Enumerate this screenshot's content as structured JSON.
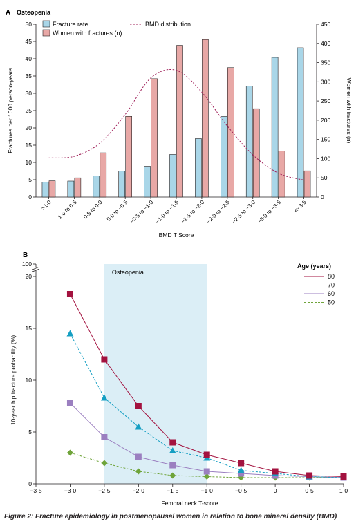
{
  "caption": {
    "label": "Figure 2:",
    "text": "Fracture epidemiology in postmenopausal women in relation to bone mineral density (BMD)"
  },
  "chart_data": [
    {
      "type": "bar",
      "panel": "A",
      "title": "Osteopenia",
      "xlabel": "BMD T Score",
      "ylabel": "Fractures per 1000 person-years",
      "y2label": "Women with fractures (n)",
      "ylim": [
        0,
        50
      ],
      "y2lim": [
        0,
        450
      ],
      "yticks": [
        0,
        5,
        10,
        15,
        20,
        25,
        30,
        35,
        40,
        45,
        50
      ],
      "y2ticks": [
        0,
        50,
        100,
        150,
        200,
        250,
        300,
        350,
        400,
        450
      ],
      "categories": [
        ">1·0",
        "1·0 to 0·5",
        "0·5 to 0·0",
        "0·0 to −0·5",
        "−0·5 to −1·0",
        "−1·0 to −1·5",
        "−1·5 to −2·0",
        "−2·0 to −2·5",
        "−2·5 to −3·0",
        "−3·0 to −3·5",
        "<−3·5"
      ],
      "legend_position": "top-left",
      "series": [
        {
          "name": "Fracture rate",
          "axis": "left",
          "color": "#a9d6e8",
          "values": [
            4.3,
            4.6,
            6.1,
            7.5,
            8.9,
            12.3,
            16.9,
            23.3,
            32.1,
            40.4,
            43.2
          ]
        },
        {
          "name": "Women with fractures (n)",
          "axis": "right",
          "color": "#e8a8a6",
          "values": [
            42,
            50,
            115,
            210,
            308,
            395,
            410,
            337,
            230,
            120,
            68
          ]
        },
        {
          "name": "BMD distribution",
          "type": "line",
          "style": "dashed",
          "color": "#a0215a",
          "axis": "right",
          "values": [
            102,
            106,
            140,
            215,
            310,
            330,
            273,
            185,
            110,
            62,
            44
          ]
        }
      ]
    },
    {
      "type": "line",
      "panel": "B",
      "xlabel": "Femoral neck T-score",
      "ylabel": "10-year hip fracture probability (%)",
      "xlim": [
        -3.5,
        1.0
      ],
      "ylim": [
        0,
        20
      ],
      "xticks": [
        "−3·5",
        "−3·0",
        "−2·5",
        "−2·0",
        "−1·5",
        "−1·0",
        "−0·5",
        "0",
        "0·5",
        "1·0"
      ],
      "xtick_values": [
        -3.5,
        -3.0,
        -2.5,
        -2.0,
        -1.5,
        -1.0,
        -0.5,
        0,
        0.5,
        1.0
      ],
      "yticks": [
        0,
        5,
        10,
        15,
        20
      ],
      "ybreak_label": "100",
      "shaded_region": {
        "label": "Osteopenia",
        "x": [
          -2.5,
          -1.0
        ],
        "color": "#dbeef6"
      },
      "legend_title": "Age (years)",
      "legend_position": "top-right",
      "x": [
        -3.0,
        -2.5,
        -2.0,
        -1.5,
        -1.0,
        -0.5,
        0,
        0.5,
        1.0
      ],
      "series": [
        {
          "name": "80",
          "color": "#a3123f",
          "style": "solid",
          "marker": "square",
          "values": [
            18.3,
            12.0,
            7.5,
            4.0,
            2.8,
            2.0,
            1.2,
            0.8,
            0.7
          ]
        },
        {
          "name": "70",
          "color": "#159fc3",
          "style": "dashed",
          "marker": "triangle",
          "values": [
            14.5,
            8.3,
            5.5,
            3.2,
            2.5,
            1.3,
            1.0,
            0.7,
            0.6
          ]
        },
        {
          "name": "60",
          "color": "#9b7fc0",
          "style": "solid",
          "marker": "square",
          "values": [
            7.8,
            4.5,
            2.6,
            1.8,
            1.2,
            1.0,
            0.8,
            0.7,
            0.6
          ]
        },
        {
          "name": "50",
          "color": "#6fa43a",
          "style": "dashed",
          "marker": "diamond",
          "values": [
            3.0,
            2.0,
            1.2,
            0.8,
            0.7,
            0.6,
            0.6,
            0.6,
            0.6
          ]
        }
      ]
    }
  ]
}
